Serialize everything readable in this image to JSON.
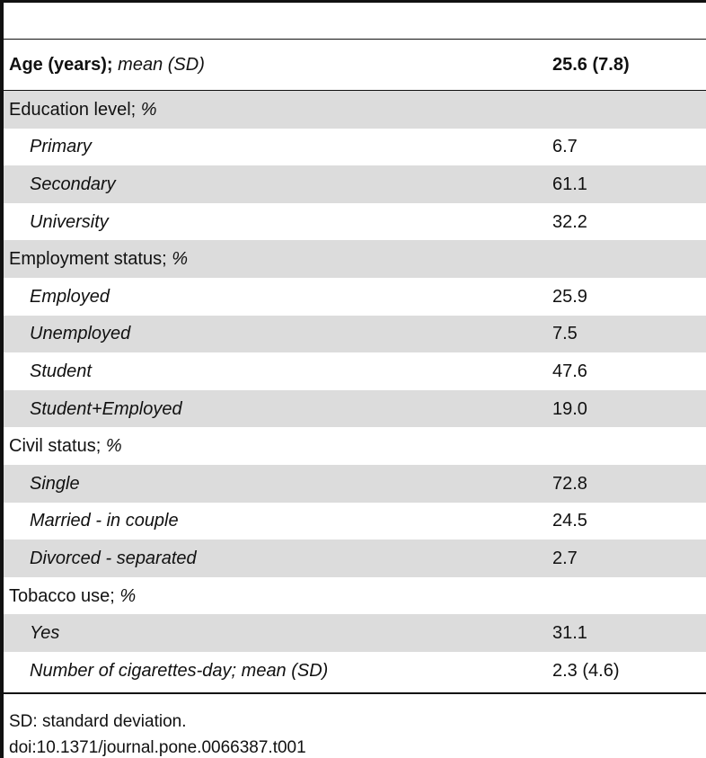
{
  "header": {
    "label_main": "Age (years);",
    "label_italic": "mean (SD)",
    "value": "25.6 (7.8)"
  },
  "sections": [
    {
      "title": "Education level;",
      "unit": "%",
      "rows": [
        {
          "label": "Primary",
          "value": "6.7"
        },
        {
          "label": "Secondary",
          "value": "61.1"
        },
        {
          "label": "University",
          "value": "32.2"
        }
      ]
    },
    {
      "title": "Employment status;",
      "unit": "%",
      "rows": [
        {
          "label": "Employed",
          "value": "25.9"
        },
        {
          "label": "Unemployed",
          "value": "7.5"
        },
        {
          "label": "Student",
          "value": "47.6"
        },
        {
          "label": "Student+Employed",
          "value": "19.0"
        }
      ]
    },
    {
      "title": "Civil status;",
      "unit": "%",
      "rows": [
        {
          "label": "Single",
          "value": "72.8"
        },
        {
          "label": "Married - in couple",
          "value": "24.5"
        },
        {
          "label": "Divorced - separated",
          "value": "2.7"
        }
      ]
    },
    {
      "title": "Tobacco use;",
      "unit": "%",
      "rows": [
        {
          "label": "Yes",
          "value": "31.1"
        },
        {
          "label": "Number of cigarettes-day; mean (SD)",
          "value": "2.3 (4.6)"
        }
      ]
    }
  ],
  "footnote": {
    "abbrev": "SD: standard deviation.",
    "doi": "doi:10.1371/journal.pone.0066387.t001"
  }
}
